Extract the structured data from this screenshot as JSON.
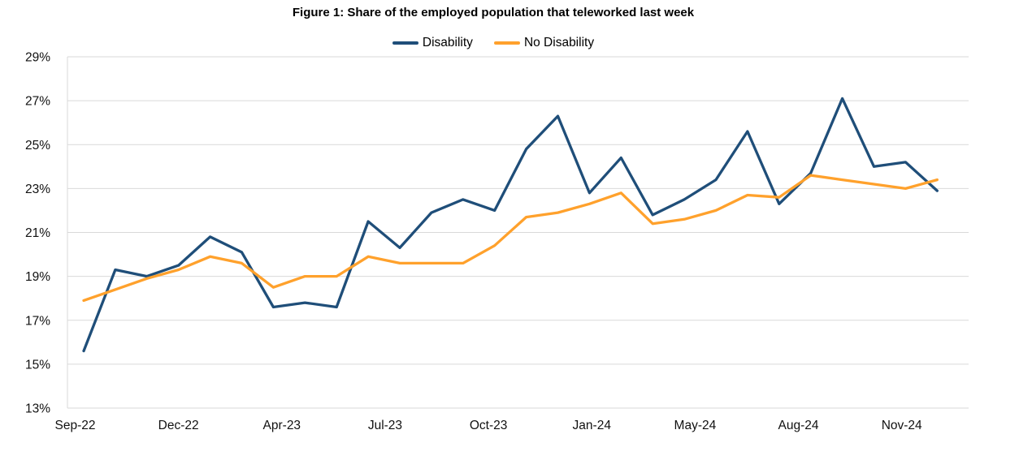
{
  "chart_data": {
    "type": "line",
    "title": "Figure 1: Share of the employed population that teleworked last week",
    "xlabel": "",
    "ylabel": "",
    "y_min": 13,
    "y_max": 29,
    "y_step": 2,
    "y_tick_labels": [
      "29%",
      "27%",
      "25%",
      "23%",
      "21%",
      "19%",
      "17%",
      "15%",
      "13%"
    ],
    "x_tick_labels": [
      "Sep-22",
      "Dec-22",
      "Apr-23",
      "Jul-23",
      "Oct-23",
      "Jan-24",
      "May-24",
      "Aug-24",
      "Nov-24"
    ],
    "grid": true,
    "legend_position": "top",
    "grid_color": "#D9D9D9",
    "axis_text_color": "#111111",
    "series": [
      {
        "name": "Disability",
        "color": "#1F4E79",
        "values": [
          15.6,
          19.3,
          19.0,
          19.5,
          20.8,
          20.1,
          17.6,
          17.8,
          17.6,
          21.5,
          20.3,
          21.9,
          22.5,
          22.0,
          24.8,
          26.3,
          22.8,
          24.4,
          21.8,
          22.5,
          23.4,
          25.6,
          22.3,
          23.7,
          27.1,
          24.0,
          24.2,
          22.9
        ]
      },
      {
        "name": "No Disability",
        "color": "#FFA12C",
        "values": [
          17.9,
          18.4,
          18.9,
          19.3,
          19.9,
          19.6,
          18.5,
          19.0,
          19.0,
          19.9,
          19.6,
          19.6,
          19.6,
          20.4,
          21.7,
          21.9,
          22.3,
          22.8,
          21.4,
          21.6,
          22.0,
          22.7,
          22.6,
          23.6,
          23.4,
          23.2,
          23.0,
          23.4
        ]
      }
    ]
  }
}
